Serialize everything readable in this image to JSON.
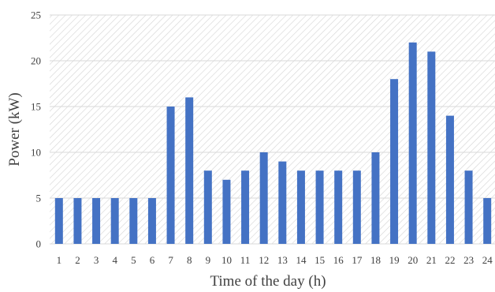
{
  "chart_data": {
    "type": "bar",
    "xlabel": "Time of the day (h)",
    "ylabel": "Power (kW)",
    "ylim": [
      0,
      25
    ],
    "yticks": [
      0,
      5,
      10,
      15,
      20,
      25
    ],
    "grid": true,
    "categories": [
      "1",
      "2",
      "3",
      "4",
      "5",
      "6",
      "7",
      "8",
      "9",
      "10",
      "11",
      "12",
      "13",
      "14",
      "15",
      "16",
      "17",
      "18",
      "19",
      "20",
      "21",
      "22",
      "23",
      "24"
    ],
    "values": [
      5,
      5,
      5,
      5,
      5,
      5,
      15,
      16,
      8,
      7,
      8,
      10,
      9,
      8,
      8,
      8,
      8,
      10,
      18,
      22,
      21,
      14,
      8,
      5
    ],
    "colors": {
      "bar": "#4472C4",
      "grid": "#D9D9D9",
      "hatch": "#D4D4D4",
      "text": "#404040"
    }
  }
}
